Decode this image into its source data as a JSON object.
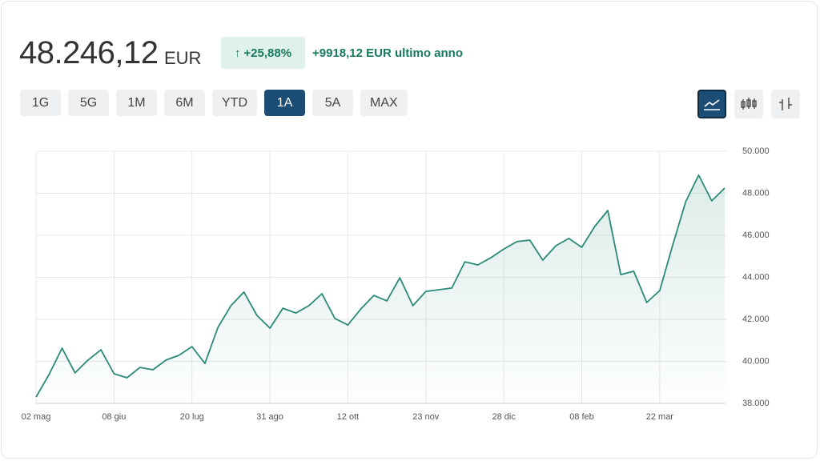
{
  "header": {
    "price": "48.246,12",
    "currency": "EUR",
    "change_pct": "+25,88%",
    "change_abs": "+9918,12 EUR ultimo anno"
  },
  "ranges": [
    {
      "label": "1G"
    },
    {
      "label": "5G"
    },
    {
      "label": "1M"
    },
    {
      "label": "6M"
    },
    {
      "label": "YTD"
    },
    {
      "label": "1A",
      "selected": true
    },
    {
      "label": "5A"
    },
    {
      "label": "MAX"
    }
  ],
  "chart_data": {
    "type": "area",
    "color": "#2a8a78",
    "categories": [
      "02 mag",
      null,
      null,
      null,
      null,
      null,
      "08 giu",
      null,
      null,
      null,
      null,
      null,
      "20 lug",
      null,
      null,
      null,
      null,
      null,
      "31 ago",
      null,
      null,
      null,
      null,
      null,
      "12 ott",
      null,
      null,
      null,
      null,
      null,
      "23 nov",
      null,
      null,
      null,
      null,
      null,
      "28 dic",
      null,
      null,
      null,
      null,
      null,
      "08 feb",
      null,
      null,
      null,
      null,
      null,
      "22 mar",
      null,
      null,
      null,
      null,
      null
    ],
    "values": [
      38300,
      39370,
      40630,
      39450,
      40060,
      40550,
      39410,
      39220,
      39710,
      39600,
      40060,
      40290,
      40700,
      39900,
      41620,
      42650,
      43300,
      42190,
      41580,
      42530,
      42300,
      42650,
      43220,
      42040,
      41730,
      42500,
      43140,
      42880,
      43980,
      42650,
      43330,
      43410,
      43490,
      44740,
      44590,
      44930,
      45350,
      45700,
      45770,
      44820,
      45500,
      45850,
      45430,
      46420,
      47180,
      44130,
      44290,
      42800,
      43370,
      45540,
      47600,
      48860,
      47640,
      48246
    ],
    "ylim": [
      38000,
      50000
    ],
    "yticks": [
      {
        "value": 38000,
        "label": "38.000"
      },
      {
        "value": 40000,
        "label": "40.000"
      },
      {
        "value": 42000,
        "label": "42.000"
      },
      {
        "value": 44000,
        "label": "44.000"
      },
      {
        "value": 46000,
        "label": "46.000"
      },
      {
        "value": 48000,
        "label": "48.000"
      },
      {
        "value": 50000,
        "label": "50.000"
      }
    ],
    "grid": true
  }
}
